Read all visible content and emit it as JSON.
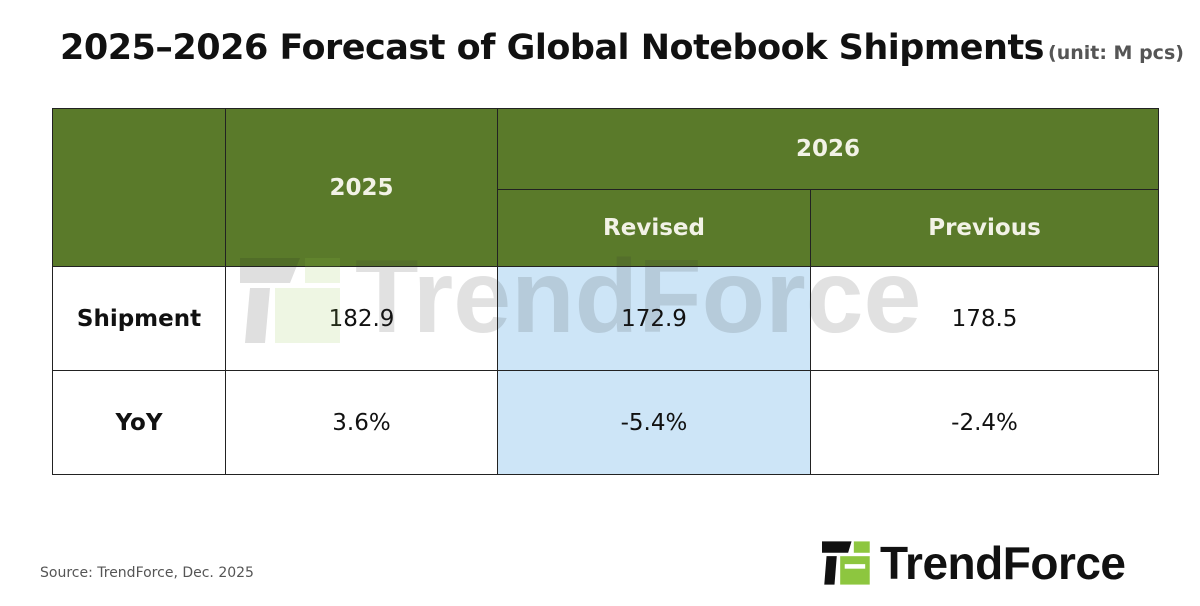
{
  "title": "2025–2026 Forecast of Global Notebook Shipments",
  "unit": "(unit: M pcs)",
  "table": {
    "header": {
      "col_2025": "2025",
      "col_2026": "2026",
      "sub_revised": "Revised",
      "sub_previous": "Previous"
    },
    "rows": [
      {
        "label": "Shipment",
        "y2025": "182.9",
        "revised": "172.9",
        "previous": "178.5"
      },
      {
        "label": "YoY",
        "y2025": "3.6%",
        "revised": "-5.4%",
        "previous": "-2.4%"
      }
    ]
  },
  "watermark": "TrendForce",
  "source": "Source: TrendForce, Dec. 2025",
  "logo": "TrendForce",
  "colors": {
    "header_green": "#5a7a2a",
    "highlight_blue": "#cde5f7",
    "logo_green": "#8dc63f"
  }
}
